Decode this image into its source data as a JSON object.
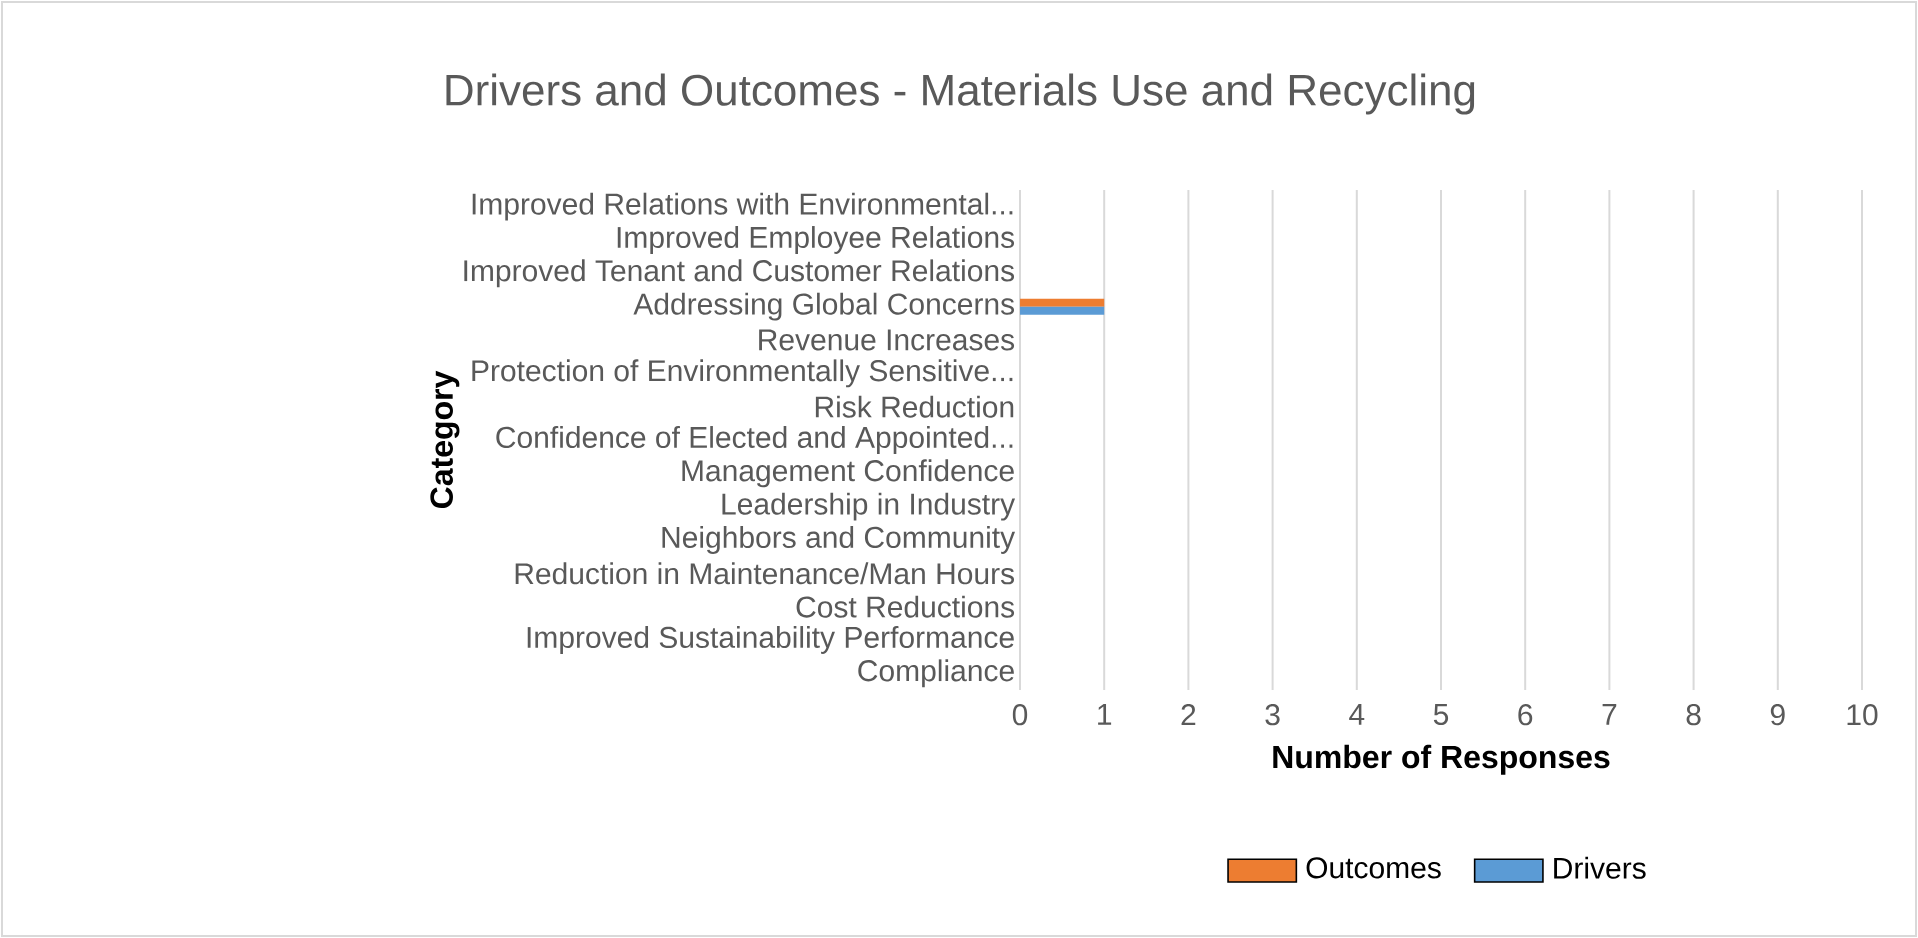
{
  "chart_data": {
    "type": "bar",
    "orientation": "horizontal",
    "title": "Drivers and Outcomes - Materials Use and Recycling",
    "xlabel": "Number of Responses",
    "ylabel": "Category",
    "categories": [
      "Improved Relations with Environmental...",
      "Improved Employee Relations",
      "Improved Tenant and Customer Relations",
      "Addressing Global Concerns",
      "Revenue Increases",
      "Protection of Environmentally Sensitive...",
      "Risk Reduction",
      "Confidence of Elected and Appointed...",
      "Management Confidence",
      "Leadership in Industry",
      "Neighbors and Community",
      "Reduction in Maintenance/Man Hours",
      "Cost Reductions",
      "Improved Sustainability Performance",
      "Compliance"
    ],
    "series": [
      {
        "name": "Outcomes",
        "color": "#ed7d31",
        "values": [
          0,
          0,
          0,
          1,
          0,
          0,
          0,
          0,
          0,
          0,
          0,
          0,
          0,
          0,
          0
        ]
      },
      {
        "name": "Drivers",
        "color": "#5b9bd5",
        "values": [
          0,
          0,
          0,
          1,
          0,
          0,
          0,
          0,
          0,
          0,
          0,
          0,
          0,
          0,
          0
        ]
      }
    ],
    "xlim": [
      0,
      10
    ],
    "xticks": [
      0,
      1,
      2,
      3,
      4,
      5,
      6,
      7,
      8,
      9,
      10
    ],
    "grid": "x",
    "legend": "bottom"
  }
}
